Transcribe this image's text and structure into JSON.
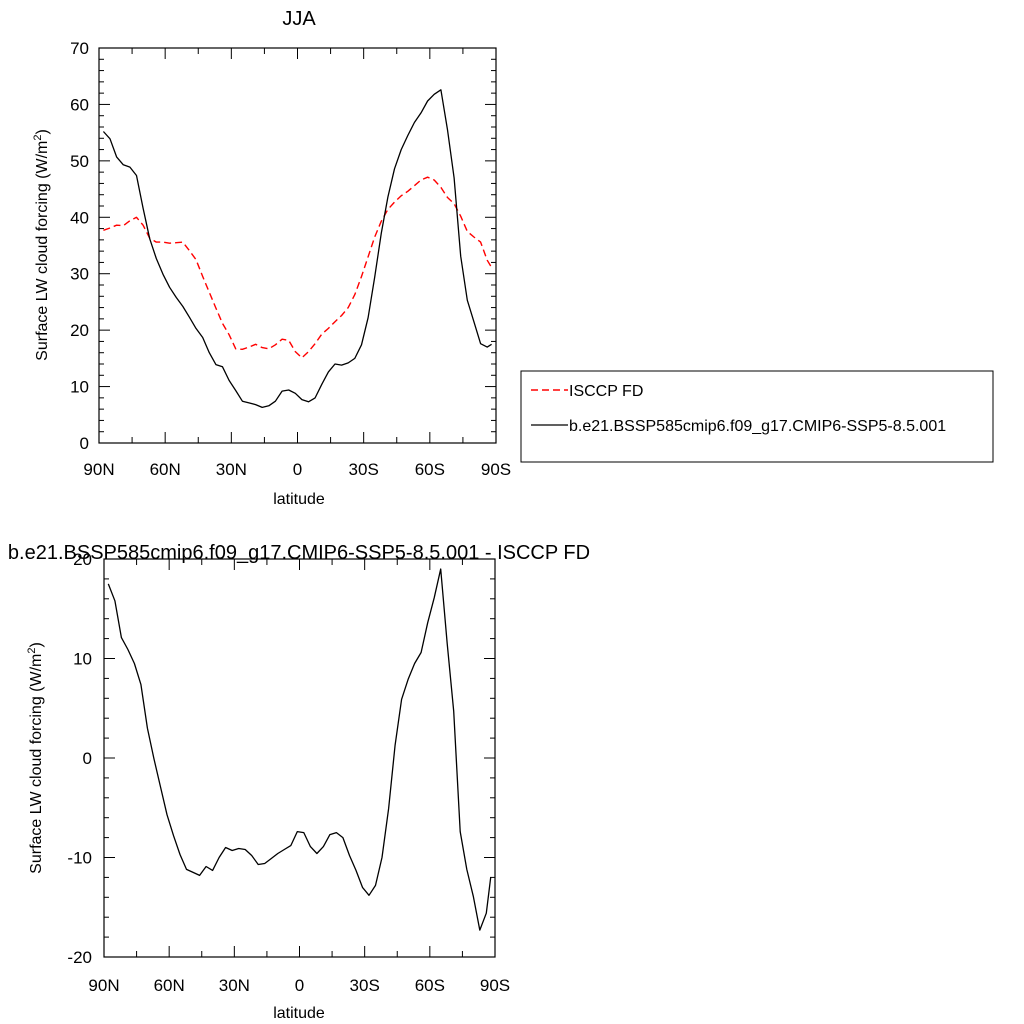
{
  "chart_data": [
    {
      "type": "line",
      "title": "JJA",
      "xlabel": "latitude",
      "ylabel": "Surface LW cloud forcing (W/m",
      "ylabel_sup": "2",
      "ylabel_close": ")",
      "xlim": [
        90,
        -90
      ],
      "ylim": [
        0,
        70
      ],
      "xticks": [
        90,
        60,
        30,
        0,
        -30,
        -60,
        -90
      ],
      "xtick_labels": [
        "90N",
        "60N",
        "30N",
        "0",
        "30S",
        "60S",
        "90S"
      ],
      "yticks": [
        0,
        10,
        20,
        30,
        40,
        50,
        60,
        70
      ],
      "ytick_labels": [
        "0",
        "10",
        "20",
        "30",
        "40",
        "50",
        "60",
        "70"
      ],
      "legend_position": "right",
      "series": [
        {
          "name": "ISCCP FD",
          "color": "#ff0000",
          "dash": "dashed",
          "x": [
            88,
            85,
            82,
            79,
            76,
            73,
            70,
            67,
            64,
            61,
            58,
            55,
            52,
            49,
            46,
            43,
            40,
            37,
            34,
            31,
            28,
            25,
            22,
            19,
            16,
            13,
            10,
            7,
            4,
            1,
            -2,
            -5,
            -8,
            -11,
            -14,
            -17,
            -20,
            -23,
            -26,
            -29,
            -32,
            -35,
            -38,
            -41,
            -44,
            -47,
            -50,
            -53,
            -56,
            -59,
            -62,
            -65,
            -68,
            -71,
            -74,
            -77,
            -80,
            -83,
            -86,
            -88
          ],
          "y": [
            37.7,
            38.1,
            38.6,
            38.5,
            39.4,
            40.0,
            38.6,
            36.3,
            35.6,
            35.6,
            35.4,
            35.5,
            35.6,
            34.1,
            32.5,
            29.5,
            26.7,
            23.9,
            21.2,
            19.2,
            16.7,
            16.6,
            17.0,
            17.5,
            16.9,
            16.7,
            17.4,
            18.4,
            18.2,
            16.2,
            15.1,
            16.2,
            17.6,
            19.3,
            20.3,
            21.5,
            22.6,
            24.0,
            26.3,
            29.5,
            33.0,
            36.5,
            39.3,
            41.4,
            42.7,
            43.8,
            44.6,
            45.6,
            46.6,
            47.1,
            46.6,
            45.3,
            43.5,
            42.4,
            40.2,
            37.5,
            36.5,
            35.6,
            32.4,
            31.1
          ]
        },
        {
          "name": "b.e21.BSSP585cmip6.f09_g17.CMIP6-SSP5-8.5.001",
          "color": "#000000",
          "dash": "solid",
          "x": [
            88,
            85,
            82,
            79,
            76,
            73,
            70,
            67,
            64,
            61,
            58,
            55,
            52,
            49,
            46,
            43,
            40,
            37,
            34,
            31,
            28,
            25,
            22,
            19,
            16,
            13,
            10,
            7,
            4,
            1,
            -2,
            -5,
            -8,
            -11,
            -14,
            -17,
            -20,
            -23,
            -26,
            -29,
            -32,
            -35,
            -38,
            -41,
            -44,
            -47,
            -50,
            -53,
            -56,
            -59,
            -62,
            -65,
            -68,
            -71,
            -74,
            -77,
            -80,
            -83,
            -86,
            -88
          ],
          "y": [
            55.2,
            53.9,
            50.7,
            49.3,
            48.9,
            47.4,
            41.6,
            36.2,
            32.7,
            29.9,
            27.6,
            25.8,
            24.2,
            22.3,
            20.3,
            18.7,
            16.0,
            13.9,
            13.5,
            11.1,
            9.3,
            7.4,
            7.1,
            6.8,
            6.3,
            6.6,
            7.4,
            9.2,
            9.4,
            8.8,
            7.7,
            7.3,
            8.0,
            10.4,
            12.6,
            14.0,
            13.8,
            14.2,
            15.0,
            17.4,
            22.2,
            29.4,
            37.2,
            43.6,
            48.6,
            52.0,
            54.5,
            56.8,
            58.5,
            60.6,
            61.8,
            62.6,
            55.5,
            47.0,
            33.1,
            25.3,
            21.5,
            17.6,
            17.0,
            17.5
          ]
        }
      ]
    },
    {
      "type": "line",
      "title": "b.e21.BSSP585cmip6.f09_g17.CMIP6-SSP5-8.5.001 - ISCCP FD",
      "xlabel": "latitude",
      "ylabel": "Surface LW cloud forcing (W/m",
      "ylabel_sup": "2",
      "ylabel_close": ")",
      "xlim": [
        90,
        -90
      ],
      "ylim": [
        -20,
        20
      ],
      "xticks": [
        90,
        60,
        30,
        0,
        -30,
        -60,
        -90
      ],
      "xtick_labels": [
        "90N",
        "60N",
        "30N",
        "0",
        "30S",
        "60S",
        "90S"
      ],
      "yticks": [
        -20,
        -10,
        0,
        10,
        20
      ],
      "ytick_labels": [
        "-20",
        "-10",
        "0",
        "10",
        "20"
      ],
      "series": [
        {
          "color": "#000000",
          "dash": "solid",
          "x": [
            88,
            85,
            82,
            79,
            76,
            73,
            70,
            67,
            64,
            61,
            58,
            55,
            52,
            49,
            46,
            43,
            40,
            37,
            34,
            31,
            28,
            25,
            22,
            19,
            16,
            13,
            10,
            7,
            4,
            1,
            -2,
            -5,
            -8,
            -11,
            -14,
            -17,
            -20,
            -23,
            -26,
            -29,
            -32,
            -35,
            -38,
            -41,
            -44,
            -47,
            -50,
            -53,
            -56,
            -59,
            -62,
            -65,
            -68,
            -71,
            -74,
            -77,
            -80,
            -83,
            -86,
            -88
          ],
          "y": [
            17.5,
            15.8,
            12.1,
            10.9,
            9.5,
            7.4,
            3.0,
            -0.1,
            -2.9,
            -5.7,
            -7.8,
            -9.7,
            -11.2,
            -11.5,
            -11.8,
            -10.9,
            -11.3,
            -10.0,
            -9.0,
            -9.3,
            -9.1,
            -9.2,
            -9.8,
            -10.7,
            -10.6,
            -10.1,
            -9.6,
            -9.2,
            -8.8,
            -7.4,
            -7.5,
            -8.9,
            -9.6,
            -8.9,
            -7.7,
            -7.5,
            -8.0,
            -9.8,
            -11.3,
            -13.0,
            -13.8,
            -12.8,
            -10.0,
            -5.1,
            1.3,
            5.9,
            7.9,
            9.5,
            10.6,
            13.6,
            16.1,
            19.0,
            11.5,
            4.7,
            -7.4,
            -11.2,
            -13.9,
            -17.3,
            -15.6,
            -12.0
          ]
        }
      ]
    }
  ]
}
